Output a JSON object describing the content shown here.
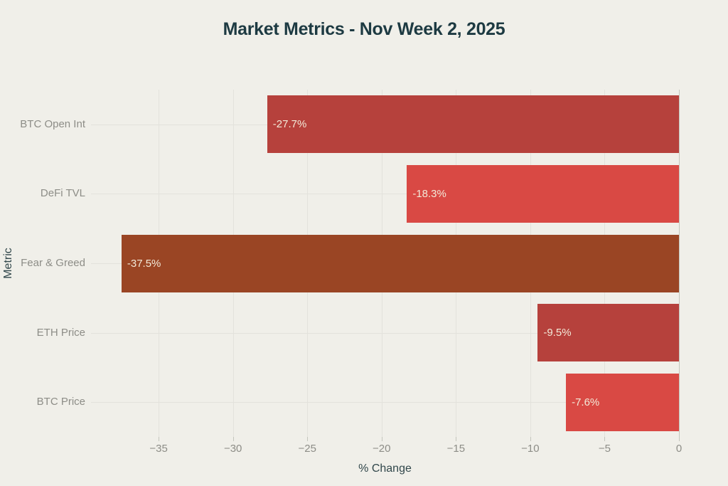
{
  "title": "Market Metrics - Nov Week 2, 2025",
  "colors": {
    "background": "#f0efe9",
    "title_text": "#1d3a42",
    "axis_title_text": "#31474b",
    "tick_label_text": "#8d8d87",
    "category_label_text": "#8d8d87",
    "gridline": "#e3e2dc",
    "zero_line": "#c3c5bc",
    "bar_value_text": "#f3ead9"
  },
  "chart_data": {
    "type": "bar",
    "orientation": "horizontal",
    "title": "Market Metrics - Nov Week 2, 2025",
    "xlabel": "% Change",
    "ylabel": "Metric",
    "categories": [
      "BTC Open Int",
      "DeFi TVL",
      "Fear & Greed",
      "ETH Price",
      "BTC Price"
    ],
    "values": [
      -27.7,
      -18.3,
      -37.5,
      -9.5,
      -7.6
    ],
    "value_labels": [
      "-27.7%",
      "-18.3%",
      "-37.5%",
      "-9.5%",
      "-7.6%"
    ],
    "bar_colors": [
      "#b6413c",
      "#d94944",
      "#9a4524",
      "#b6413c",
      "#d94944"
    ],
    "xlim": [
      -39.55,
      0
    ],
    "xticks": [
      -35,
      -30,
      -25,
      -20,
      -15,
      -10,
      -5,
      0
    ],
    "xtick_labels": [
      "−35",
      "−30",
      "−25",
      "−20",
      "−15",
      "−10",
      "−5",
      "0"
    ],
    "grid": true,
    "legend": false
  }
}
